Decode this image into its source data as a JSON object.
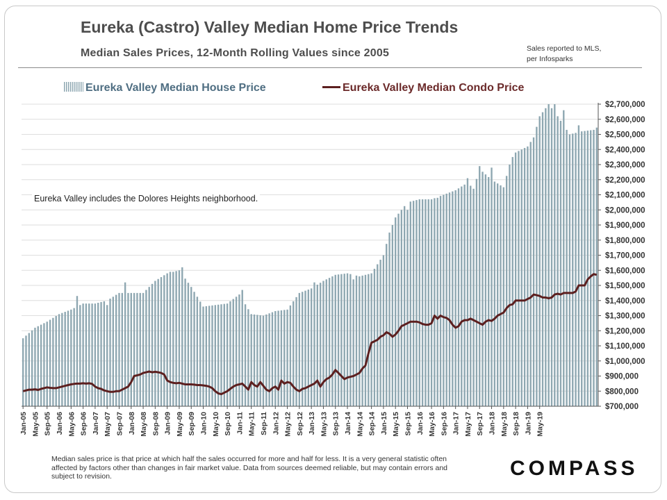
{
  "title": "Eureka (Castro) Valley Median Home Price Trends",
  "subtitle": "Median Sales Prices, 12-Month Rolling Values since 2005",
  "source_note": [
    "Sales reported  to MLS,",
    "per Infosparks"
  ],
  "legend": {
    "house": "Eureka Valley Median House Price",
    "condo": "Eureka Valley Median Condo Price"
  },
  "annotation": "Eureka Valley includes the Dolores Heights neighborhood.",
  "footer": "Median sales price is that price at which half the sales occurred for more and half for less. It is a very general statistic often affected by factors other than changes in fair market value. Data from sources deemed reliable, but may contain errors and subject to revision.",
  "logo": "COMPASS",
  "colors": {
    "house_bars": "#8ea7b1",
    "condo_line": "#5c1f1f",
    "grid": "#dedede"
  },
  "chart_data": {
    "type": "bar+line",
    "start_month": "2005-01",
    "end_month": "2019-05",
    "ylim": [
      700000,
      2700000
    ],
    "ytick_step": 100000,
    "y_axis_position": "right",
    "x_tick_labels": [
      "Jan-05",
      "May-05",
      "Sep-05",
      "Jan-06",
      "May-06",
      "Sep-06",
      "Jan-07",
      "May-07",
      "Sep-07",
      "Jan-08",
      "May-08",
      "Sep-08",
      "Jan-09",
      "May-09",
      "Sep-09",
      "Jan-10",
      "May-10",
      "Sep-10",
      "Jan-11",
      "May-11",
      "Sep-11",
      "Jan-12",
      "May-12",
      "Sep-12",
      "Jan-13",
      "May-13",
      "Sep-13",
      "Jan-14",
      "May-14",
      "Sep-14",
      "Jan-15",
      "May-15",
      "Sep-15",
      "Jan-16",
      "May-16",
      "Sep-16",
      "Jan-17",
      "May-17",
      "Sep-17",
      "Jan-18",
      "May-18",
      "Sep-18",
      "Jan-19",
      "May-19"
    ],
    "series": [
      {
        "name": "Eureka Valley Median House Price",
        "kind": "bar",
        "anchors": [
          [
            0,
            1150000
          ],
          [
            4,
            1220000
          ],
          [
            8,
            1260000
          ],
          [
            12,
            1310000
          ],
          [
            16,
            1340000
          ],
          [
            20,
            1380000
          ],
          [
            24,
            1380000
          ],
          [
            28,
            1400000
          ],
          [
            32,
            1450000
          ],
          [
            36,
            1450000
          ],
          [
            40,
            1450000
          ],
          [
            44,
            1530000
          ],
          [
            48,
            1580000
          ],
          [
            52,
            1600000
          ],
          [
            56,
            1490000
          ],
          [
            60,
            1360000
          ],
          [
            64,
            1370000
          ],
          [
            68,
            1380000
          ],
          [
            72,
            1440000
          ],
          [
            76,
            1310000
          ],
          [
            80,
            1300000
          ],
          [
            84,
            1330000
          ],
          [
            88,
            1340000
          ],
          [
            92,
            1450000
          ],
          [
            96,
            1480000
          ],
          [
            100,
            1530000
          ],
          [
            104,
            1570000
          ],
          [
            108,
            1580000
          ],
          [
            112,
            1560000
          ],
          [
            116,
            1580000
          ],
          [
            120,
            1700000
          ],
          [
            122,
            1850000
          ],
          [
            124,
            1950000
          ],
          [
            128,
            2050000
          ],
          [
            132,
            2070000
          ],
          [
            136,
            2070000
          ],
          [
            140,
            2100000
          ],
          [
            144,
            2130000
          ],
          [
            148,
            2180000
          ],
          [
            150,
            2140000
          ],
          [
            152,
            2270000
          ],
          [
            156,
            2200000
          ],
          [
            160,
            2150000
          ],
          [
            162,
            2300000
          ],
          [
            164,
            2380000
          ],
          [
            168,
            2420000
          ],
          [
            170,
            2480000
          ],
          [
            172,
            2620000
          ],
          [
            175,
            2700000
          ],
          [
            178,
            2620000
          ],
          [
            182,
            2500000
          ],
          [
            186,
            2520000
          ],
          [
            190,
            2530000
          ],
          [
            192,
            2560000
          ],
          [
            193,
            2620000
          ]
        ],
        "spikes": [
          [
            18,
            1430000
          ],
          [
            28,
            1370000
          ],
          [
            34,
            1520000
          ],
          [
            43,
            1510000
          ],
          [
            49,
            1590000
          ],
          [
            53,
            1620000
          ],
          [
            73,
            1470000
          ],
          [
            97,
            1520000
          ],
          [
            110,
            1540000
          ],
          [
            128,
            2000000
          ],
          [
            138,
            2080000
          ],
          [
            148,
            2210000
          ],
          [
            152,
            2290000
          ],
          [
            156,
            2280000
          ],
          [
            163,
            2350000
          ],
          [
            170,
            2480000
          ],
          [
            177,
            2700000
          ],
          [
            180,
            2660000
          ],
          [
            185,
            2560000
          ]
        ]
      },
      {
        "name": "Eureka Valley Median Condo Price",
        "kind": "line",
        "values": [
          800000,
          805000,
          810000,
          810000,
          812000,
          808000,
          815000,
          820000,
          825000,
          822000,
          820000,
          820000,
          825000,
          830000,
          835000,
          840000,
          845000,
          848000,
          850000,
          850000,
          852000,
          850000,
          852000,
          848000,
          830000,
          820000,
          815000,
          805000,
          800000,
          795000,
          795000,
          800000,
          800000,
          810000,
          820000,
          830000,
          860000,
          900000,
          905000,
          910000,
          920000,
          925000,
          930000,
          925000,
          928000,
          925000,
          920000,
          910000,
          870000,
          860000,
          855000,
          852000,
          855000,
          850000,
          845000,
          845000,
          845000,
          843000,
          840000,
          840000,
          838000,
          835000,
          830000,
          820000,
          800000,
          785000,
          780000,
          790000,
          800000,
          815000,
          830000,
          840000,
          845000,
          850000,
          830000,
          810000,
          860000,
          840000,
          830000,
          860000,
          835000,
          810000,
          800000,
          820000,
          830000,
          810000,
          870000,
          850000,
          860000,
          855000,
          830000,
          810000,
          800000,
          815000,
          820000,
          830000,
          840000,
          850000,
          870000,
          830000,
          860000,
          880000,
          890000,
          910000,
          940000,
          920000,
          900000,
          880000,
          890000,
          895000,
          900000,
          910000,
          920000,
          950000,
          970000,
          1050000,
          1120000,
          1130000,
          1140000,
          1160000,
          1170000,
          1190000,
          1180000,
          1160000,
          1175000,
          1200000,
          1230000,
          1240000,
          1250000,
          1260000,
          1260000,
          1260000,
          1255000,
          1245000,
          1240000,
          1240000,
          1250000,
          1300000,
          1280000,
          1300000,
          1290000,
          1285000,
          1270000,
          1240000,
          1220000,
          1230000,
          1260000,
          1270000,
          1270000,
          1280000,
          1270000,
          1260000,
          1250000,
          1240000,
          1260000,
          1270000,
          1265000,
          1280000,
          1300000,
          1310000,
          1320000,
          1350000,
          1370000,
          1375000,
          1400000,
          1400000,
          1400000,
          1400000,
          1410000,
          1420000,
          1440000,
          1435000,
          1430000,
          1420000,
          1420000,
          1415000,
          1420000,
          1440000,
          1445000,
          1440000,
          1450000,
          1450000,
          1450000,
          1450000,
          1460000,
          1500000,
          1500000,
          1500000,
          1540000,
          1560000,
          1575000,
          1570000
        ]
      }
    ]
  }
}
